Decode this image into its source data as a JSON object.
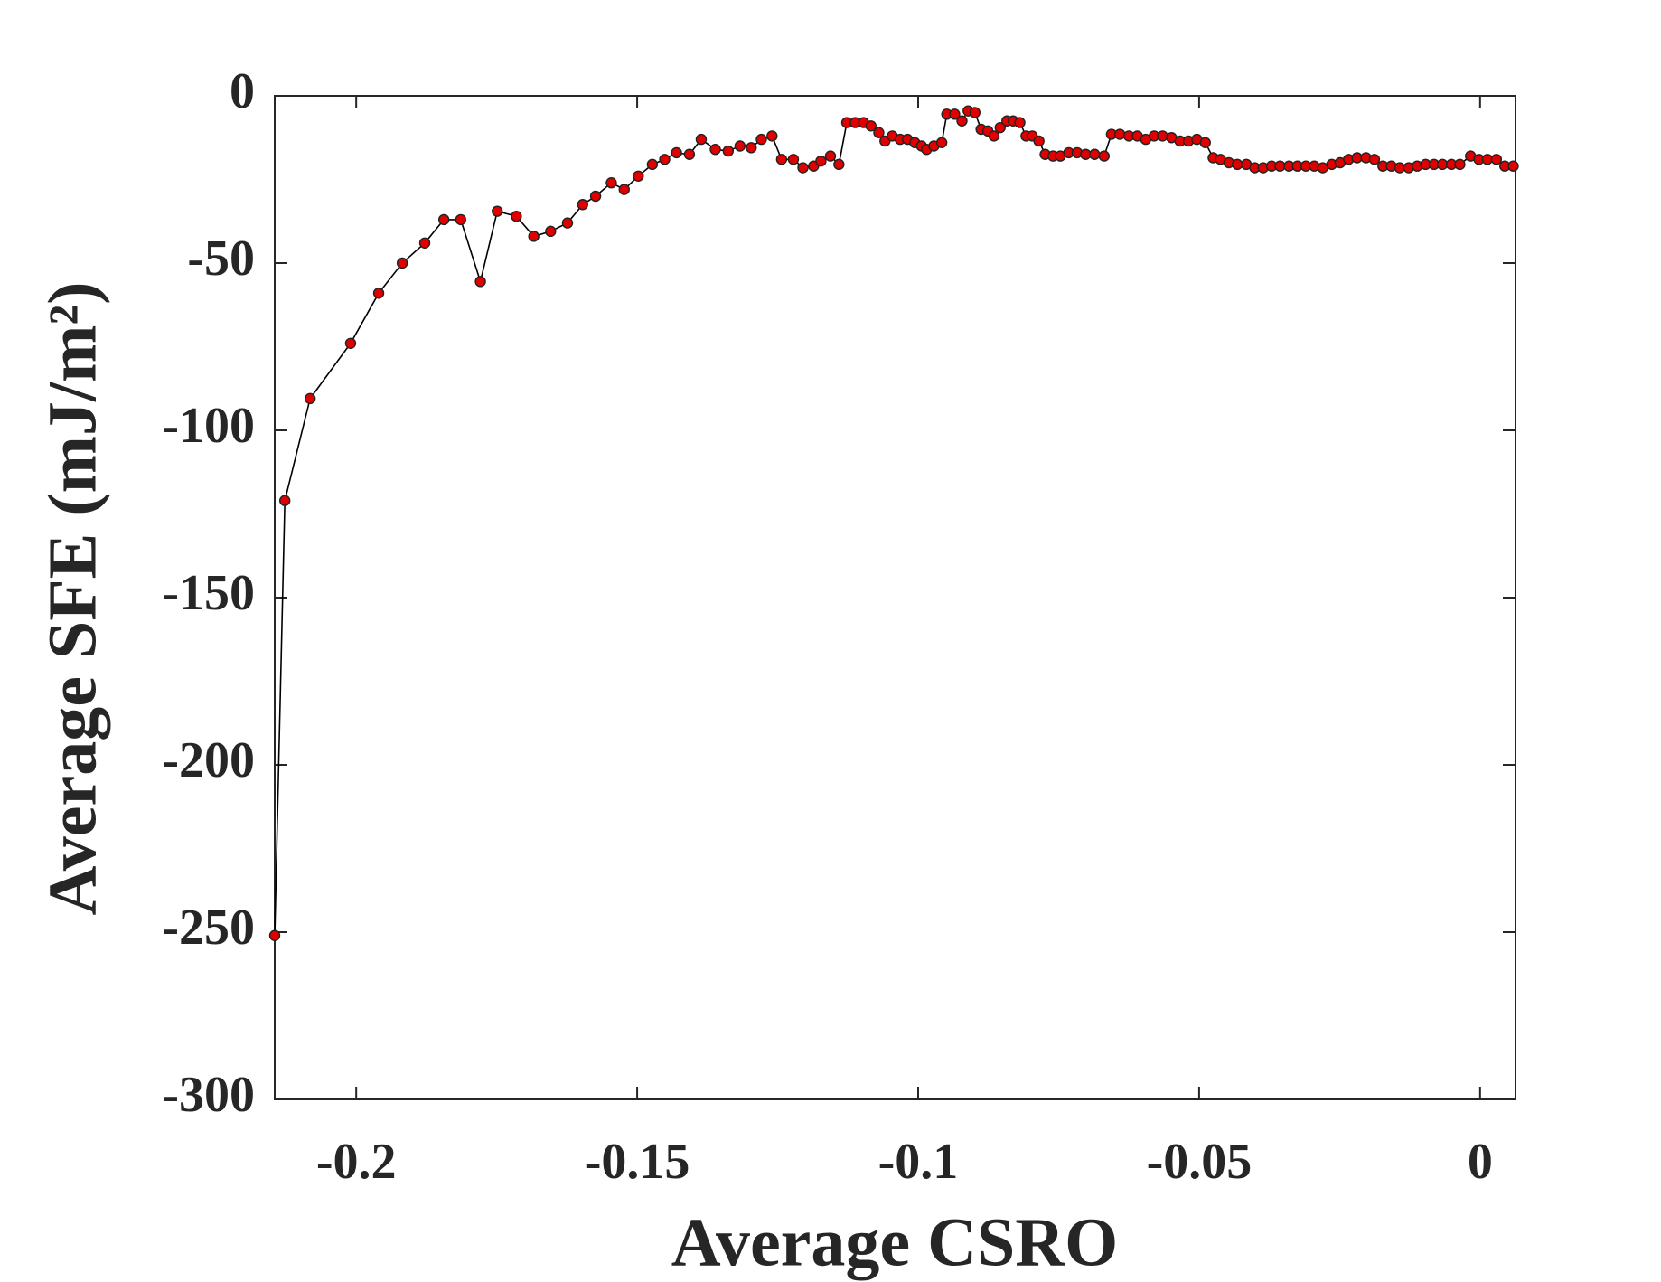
{
  "chart_data": {
    "type": "line",
    "x_label": "Average CSRO",
    "y_label": "Average SFE (mJ/m²)",
    "xlim": [
      -0.2145,
      0.0063
    ],
    "ylim": [
      -300,
      0
    ],
    "xticks": [
      -0.2,
      -0.15,
      -0.1,
      -0.05,
      0
    ],
    "yticks": [
      -300,
      -250,
      -200,
      -150,
      -100,
      -50,
      0
    ],
    "grid": false,
    "series": [
      {
        "color": "#e00000",
        "line_color": "#000000",
        "x": [
          -0.2145,
          -0.2127,
          -0.2082,
          -0.201,
          -0.196,
          -0.1918,
          -0.1878,
          -0.1844,
          -0.1814,
          -0.1779,
          -0.1749,
          -0.1715,
          -0.1684,
          -0.1654,
          -0.1624,
          -0.1597,
          -0.1574,
          -0.1546,
          -0.1523,
          -0.1498,
          -0.1473,
          -0.1451,
          -0.143,
          -0.1407,
          -0.1386,
          -0.1361,
          -0.1338,
          -0.1317,
          -0.1297,
          -0.1279,
          -0.126,
          -0.1243,
          -0.1222,
          -0.1205,
          -0.1186,
          -0.1173,
          -0.1156,
          -0.1141,
          -0.1127,
          -0.1112,
          -0.1097,
          -0.1084,
          -0.107,
          -0.1059,
          -0.1046,
          -0.1032,
          -0.1019,
          -0.1006,
          -0.0994,
          -0.0985,
          -0.0972,
          -0.0958,
          -0.0949,
          -0.0935,
          -0.0922,
          -0.0911,
          -0.0899,
          -0.0888,
          -0.0876,
          -0.0865,
          -0.0854,
          -0.0842,
          -0.0831,
          -0.0819,
          -0.0808,
          -0.0797,
          -0.0785,
          -0.0774,
          -0.076,
          -0.0747,
          -0.0732,
          -0.0717,
          -0.0702,
          -0.0686,
          -0.0669,
          -0.0656,
          -0.0641,
          -0.0625,
          -0.061,
          -0.0595,
          -0.058,
          -0.0565,
          -0.0549,
          -0.0534,
          -0.0519,
          -0.0504,
          -0.0489,
          -0.0475,
          -0.0462,
          -0.0447,
          -0.0432,
          -0.0416,
          -0.0401,
          -0.0386,
          -0.0371,
          -0.0356,
          -0.034,
          -0.0325,
          -0.031,
          -0.0295,
          -0.028,
          -0.0264,
          -0.0249,
          -0.0234,
          -0.0219,
          -0.0203,
          -0.0188,
          -0.0173,
          -0.0158,
          -0.0143,
          -0.0127,
          -0.0112,
          -0.0097,
          -0.0082,
          -0.0067,
          -0.0051,
          -0.0036,
          -0.0017,
          -0.0002,
          0.0013,
          0.0029,
          0.0044,
          0.0059
        ],
        "values": [
          -251,
          -121,
          -90.5,
          -74,
          -59,
          -50,
          -44,
          -37,
          -37,
          -55.5,
          -34.5,
          -36,
          -42,
          -40.5,
          -38,
          -32.5,
          -30,
          -26,
          -28,
          -24,
          -20.5,
          -19,
          -17,
          -17.5,
          -13,
          -16,
          -16.5,
          -15,
          -15.5,
          -13,
          -12,
          -19,
          -19,
          -21.5,
          -21,
          -19.5,
          -18,
          -20.5,
          -8,
          -8,
          -8,
          -9,
          -11,
          -13.5,
          -12,
          -13,
          -13,
          -14,
          -15,
          -16,
          -15,
          -14,
          -5.5,
          -5.5,
          -7.5,
          -4.5,
          -5,
          -10,
          -10.5,
          -12,
          -9.5,
          -7.5,
          -7.5,
          -8,
          -12,
          -12,
          -13.5,
          -17.5,
          -18,
          -18,
          -17,
          -17,
          -17.5,
          -17.5,
          -18,
          -11.5,
          -11.5,
          -12,
          -12,
          -13,
          -12,
          -12,
          -12.5,
          -13.5,
          -13.5,
          -13,
          -14,
          -18.5,
          -19,
          -20,
          -20.5,
          -20.5,
          -21.5,
          -21.5,
          -21,
          -21,
          -21,
          -21,
          -21,
          -21,
          -21.5,
          -20.5,
          -20,
          -19,
          -18.5,
          -18.5,
          -19,
          -21,
          -21,
          -21.5,
          -21.5,
          -21,
          -20.5,
          -20.5,
          -20.5,
          -20.5,
          -20.5,
          -18,
          -19,
          -19,
          -19,
          -21,
          -21
        ]
      }
    ]
  }
}
